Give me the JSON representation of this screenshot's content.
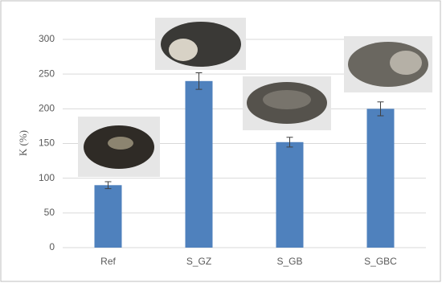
{
  "chart_data": {
    "type": "bar",
    "y_label": "K (%)",
    "categories": [
      "Ref",
      "S_GZ",
      "S_GB",
      "S_GBC"
    ],
    "values": [
      90,
      240,
      152,
      200
    ],
    "errors": [
      5,
      12,
      7,
      10
    ],
    "color": "#4f81bd",
    "ylim": [
      0,
      300
    ],
    "yticks": [
      0,
      50,
      100,
      150,
      200,
      250,
      300
    ],
    "grid": true
  }
}
